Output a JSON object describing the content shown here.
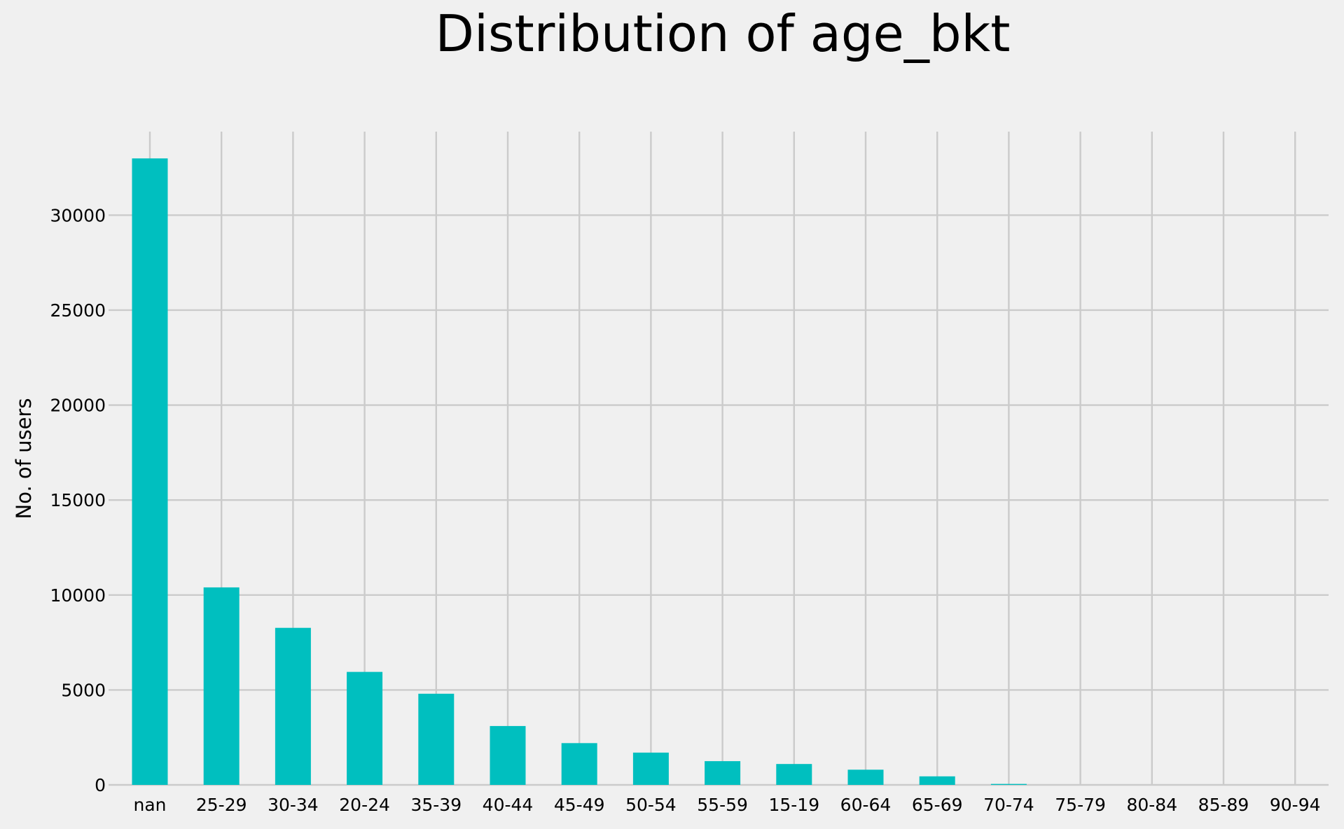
{
  "chart_data": {
    "type": "bar",
    "title": "Distribution of age_bkt",
    "xlabel": "",
    "ylabel": "No. of users",
    "categories": [
      "nan",
      "25-29",
      "30-34",
      "20-24",
      "35-39",
      "40-44",
      "45-49",
      "50-54",
      "55-59",
      "15-19",
      "60-64",
      "65-69",
      "70-74",
      "75-79",
      "80-84",
      "85-89",
      "90-94"
    ],
    "values": [
      32990,
      10400,
      8270,
      5950,
      4800,
      3100,
      2200,
      1700,
      1250,
      1100,
      800,
      450,
      50,
      0,
      0,
      0,
      0
    ],
    "yticks": [
      0,
      5000,
      10000,
      15000,
      20000,
      25000,
      30000
    ],
    "ylim": [
      0,
      34400
    ],
    "bar_color": "#00bfbf",
    "grid": true
  }
}
